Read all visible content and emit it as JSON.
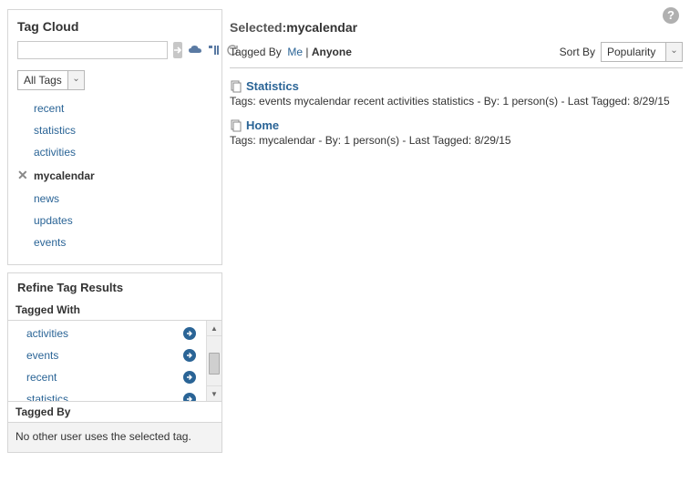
{
  "header": {
    "selected_label": "Selected:",
    "selected_value": "mycalendar",
    "tagged_by_label": "Tagged By",
    "me_label": "Me",
    "anyone_label": "Anyone",
    "sort_by_label": "Sort By",
    "sort_by_value": "Popularity"
  },
  "tagcloud": {
    "title": "Tag Cloud",
    "search_value": "",
    "dropdown_value": "All Tags",
    "tags": [
      {
        "label": "recent",
        "selected": false
      },
      {
        "label": "statistics",
        "selected": false
      },
      {
        "label": "activities",
        "selected": false
      },
      {
        "label": "mycalendar",
        "selected": true
      },
      {
        "label": "news",
        "selected": false
      },
      {
        "label": "updates",
        "selected": false
      },
      {
        "label": "events",
        "selected": false
      }
    ]
  },
  "refine": {
    "title": "Refine Tag Results",
    "tagged_with_label": "Tagged With",
    "tagged_with": [
      "activities",
      "events",
      "recent",
      "statistics"
    ],
    "tagged_by_label": "Tagged By",
    "tagged_by_msg": "No other user uses the selected tag."
  },
  "results": [
    {
      "title": "Statistics",
      "meta": "Tags: events mycalendar recent activities statistics - By: 1 person(s) - Last Tagged: 8/29/15"
    },
    {
      "title": "Home",
      "meta": "Tags: mycalendar - By: 1 person(s) - Last Tagged: 8/29/15"
    }
  ],
  "colors": {
    "link": "#2a6496",
    "border": "#d6d6d6",
    "icon": "#5a7aa3"
  }
}
